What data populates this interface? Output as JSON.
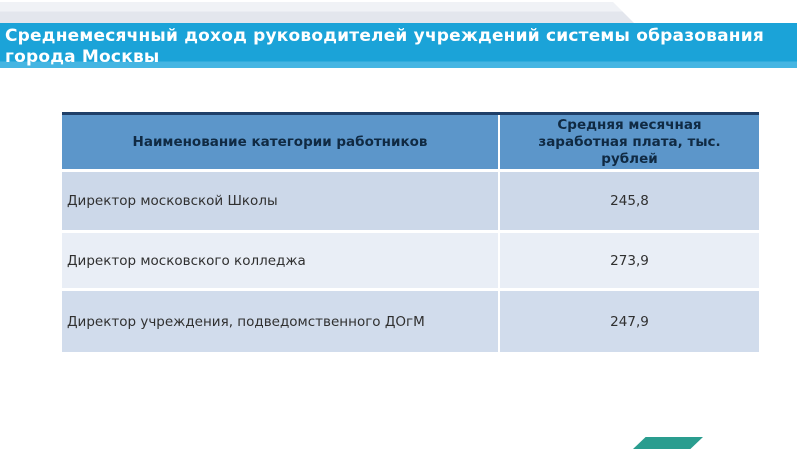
{
  "slide": {
    "title": "Среднемесячный доход руководителей учреждений системы образования города Москвы"
  },
  "table": {
    "columns": [
      "Наименование категории работников",
      "Средняя месячная заработная плата, тыс. рублей"
    ],
    "rows": [
      {
        "category": "Директор московской Школы",
        "salary": "245,8"
      },
      {
        "category": "Директор московского колледжа",
        "salary": "273,9"
      },
      {
        "category": "Директор учреждения, подведомственного ДОгМ",
        "salary": "247,9"
      }
    ]
  },
  "chart_data": {
    "type": "table",
    "title": "Среднемесячный доход руководителей учреждений системы образования города Москвы",
    "categories": [
      "Директор московской Школы",
      "Директор московского колледжа",
      "Директор учреждения, подведомственного ДОгМ"
    ],
    "values": [
      245.8,
      273.9,
      247.9
    ],
    "ylabel": "Средняя месячная заработная плата, тыс. рублей"
  },
  "colors": {
    "banner_blue": "#1ba3d8",
    "banner_blue_light": "#45b5e2",
    "band_gray": "#e3e6ed",
    "table_header_blue": "#5c96ca",
    "table_topline_navy": "#1f3f68",
    "row_band_dark": "#ccd8e9",
    "row_band_light": "#e9eef6",
    "accent_teal": "#2a9d8f"
  }
}
